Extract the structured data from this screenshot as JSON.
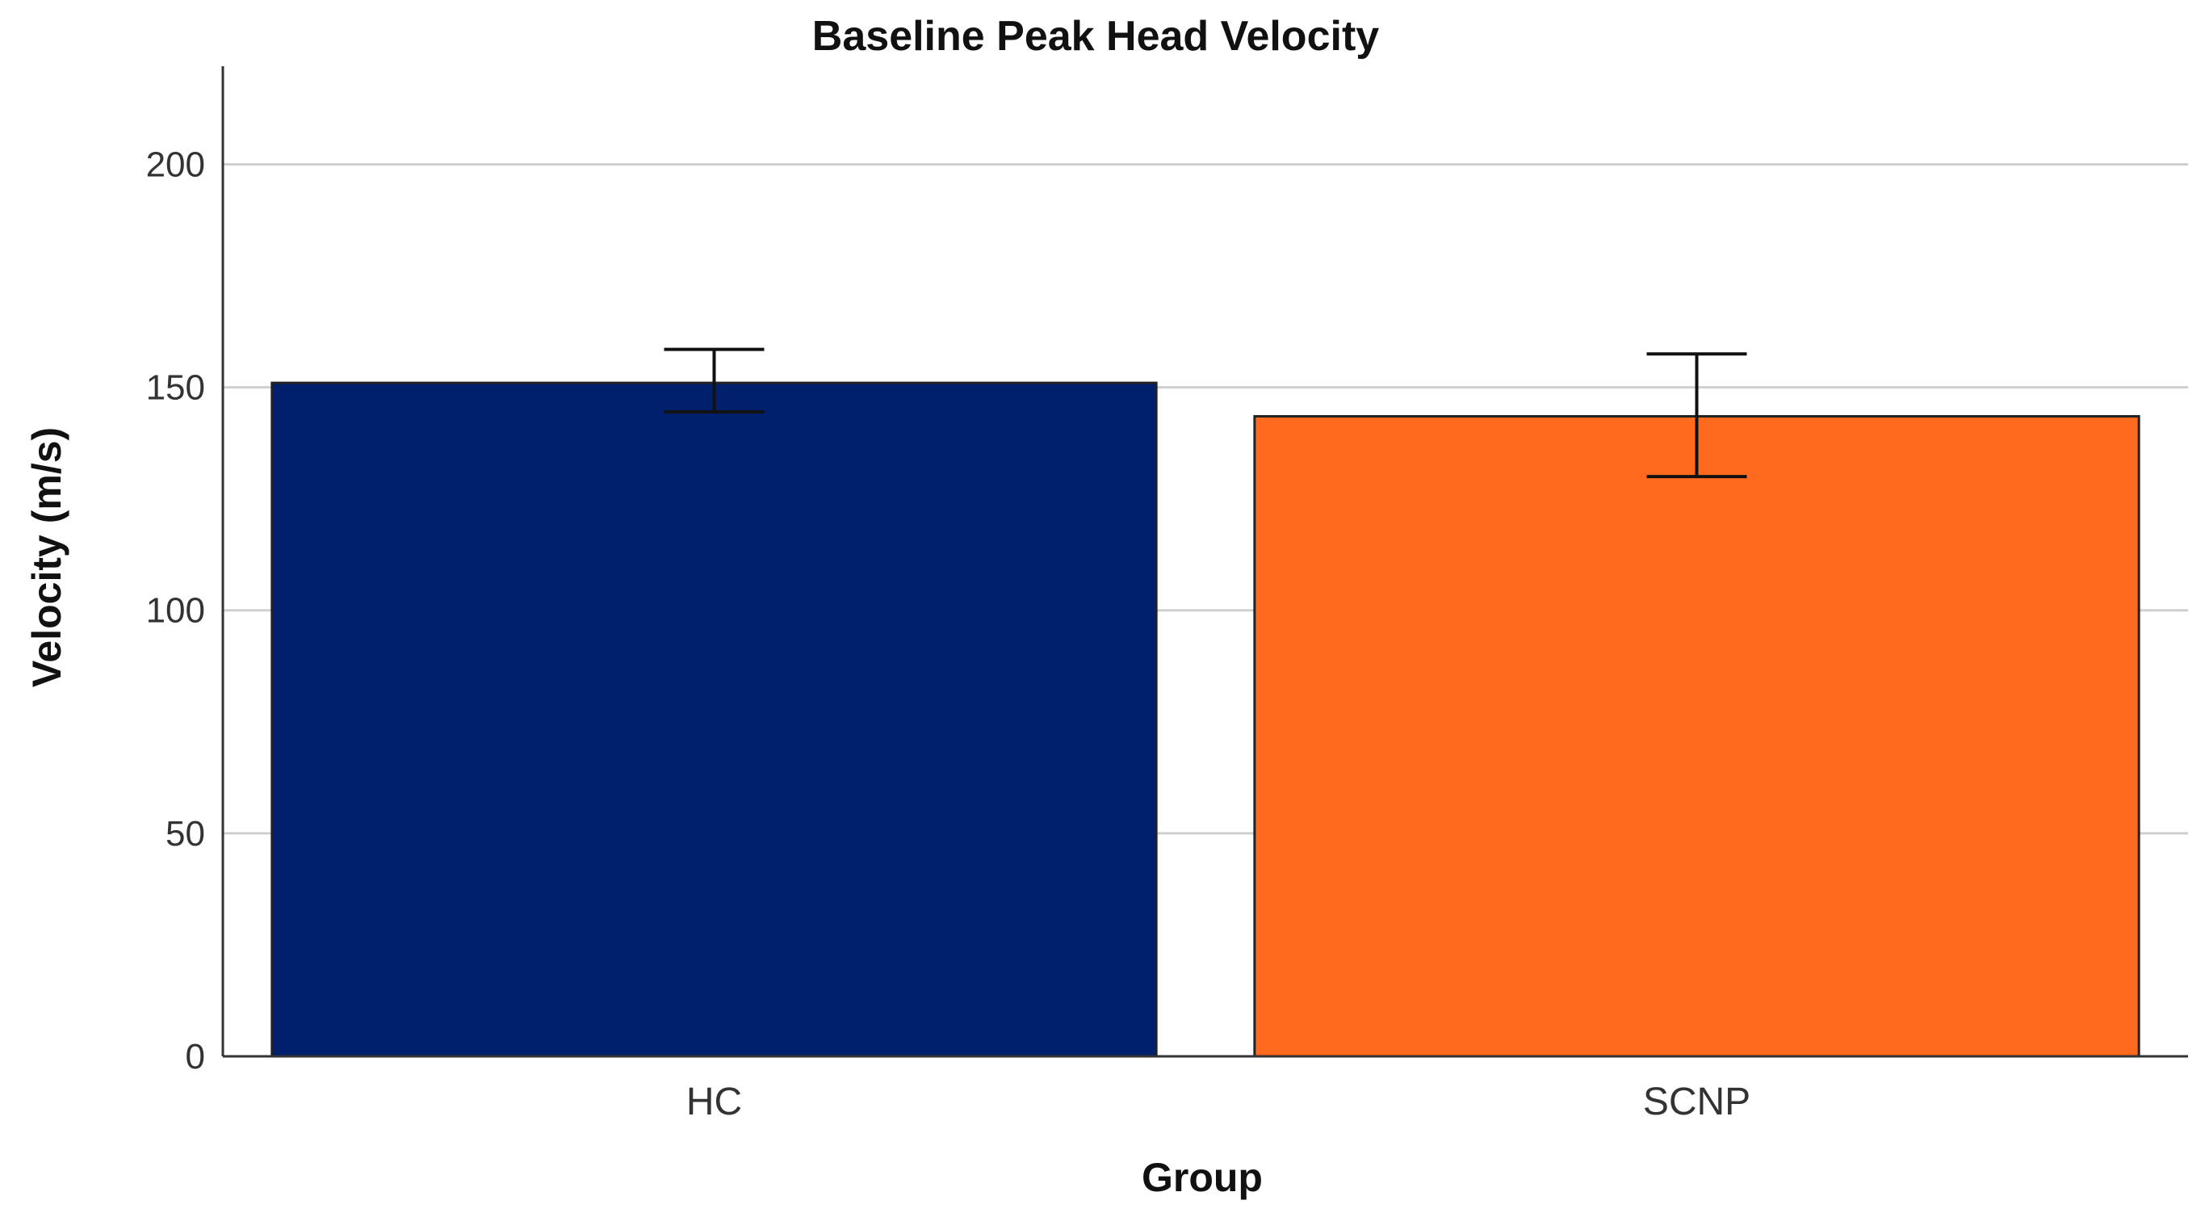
{
  "chart_data": {
    "type": "bar",
    "title": "Baseline Peak Head Velocity",
    "xlabel": "Group",
    "ylabel": "Velocity (m/s)",
    "categories": [
      "HC",
      "SCNP"
    ],
    "values": [
      151,
      143.5
    ],
    "error_bars": [
      {
        "low": 144.5,
        "high": 158.5
      },
      {
        "low": 130,
        "high": 157.5
      }
    ],
    "colors": [
      "#00206e",
      "#ff6a1f"
    ],
    "ylim": [
      0,
      222
    ],
    "yticks": [
      0,
      50,
      100,
      150,
      200
    ],
    "ytick_labels": [
      "0",
      "50",
      "100",
      "150",
      "200"
    ],
    "grid": true,
    "legend": "none"
  }
}
